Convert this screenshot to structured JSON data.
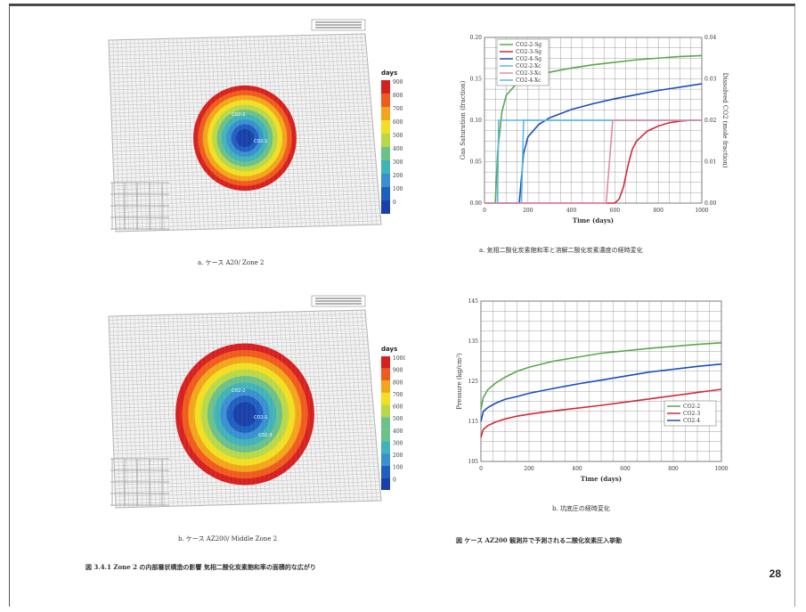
{
  "colors": {
    "ring": [
      "#d62020",
      "#f05a1e",
      "#f2a51a",
      "#f2de22",
      "#b8d84a",
      "#6cc08a",
      "#3fb3b8",
      "#3a8fd0",
      "#1f5fc0",
      "#1840a8"
    ],
    "green": "#5aa84a",
    "blue": "#1a4fb8",
    "red": "#d02b3a",
    "cyan": "#5ab8e8",
    "pink": "#e08aa8"
  },
  "map_a": {
    "legend_title": "days",
    "legend_ticks": [
      "900",
      "800",
      "700",
      "600",
      "500",
      "400",
      "300",
      "200",
      "100",
      "0"
    ],
    "labels": [
      "CO2-2",
      "CO2-1"
    ],
    "caption": "a. ケース A20/ Zone 2"
  },
  "map_b": {
    "legend_title": "days",
    "legend_ticks": [
      "1000",
      "900",
      "800",
      "700",
      "600",
      "500",
      "400",
      "300",
      "200",
      "100",
      "0"
    ],
    "labels": [
      "CO2-2",
      "CO2-1",
      "CO2-3"
    ],
    "caption": "b. ケース AZ200/ Middle Zone 2"
  },
  "left_caption": "図 3.4.1 Zone 2 の内部層状構造の影響 気相二酸化炭素飽和率の面積的な広がり",
  "chart_a_caption": "a. 気相二酸化炭素飽和率と溶解二酸化炭素濃度の経時変化",
  "chart_b_caption": "b. 坑底圧の経時変化",
  "right_caption": "図   ケース AZ200 観測井で予測される二酸化炭素圧入挙動",
  "page_number": "28",
  "chart_data": [
    {
      "type": "line",
      "xlabel": "Time (days)",
      "ylabel": "Gas Saturation (fraction)",
      "y2label": "Dissolved CO2 (mole fraction)",
      "xlim": [
        0,
        1000
      ],
      "ylim": [
        0,
        0.2
      ],
      "y2lim": [
        0,
        0.04
      ],
      "xticks": [
        "0",
        "200",
        "400",
        "600",
        "800",
        "1000"
      ],
      "yticks": [
        "0.00",
        "0.05",
        "0.10",
        "0.15",
        "0.20"
      ],
      "y2ticks": [
        "0.00",
        "0.01",
        "0.02",
        "0.03",
        "0.04"
      ],
      "legend": [
        "CO2-2-Sg",
        "CO2-3-Sg",
        "CO2-4-Sg",
        "CO2-2-Xc",
        "CO2-3-Xc",
        "CO2-4-Xc"
      ],
      "series": [
        {
          "name": "CO2-2-Sg",
          "x": [
            0,
            50,
            60,
            80,
            100,
            150,
            200,
            300,
            400,
            500,
            600,
            700,
            800,
            900,
            1000
          ],
          "values": [
            0,
            0,
            0.06,
            0.11,
            0.13,
            0.145,
            0.15,
            0.158,
            0.163,
            0.167,
            0.17,
            0.173,
            0.175,
            0.177,
            0.178
          ]
        },
        {
          "name": "CO2-4-Sg",
          "x": [
            0,
            160,
            170,
            180,
            200,
            250,
            300,
            400,
            500,
            600,
            700,
            800,
            900,
            1000
          ],
          "values": [
            0,
            0,
            0.03,
            0.06,
            0.08,
            0.095,
            0.103,
            0.113,
            0.12,
            0.126,
            0.131,
            0.136,
            0.14,
            0.144
          ]
        },
        {
          "name": "CO2-3-Sg",
          "x": [
            0,
            600,
            620,
            640,
            660,
            680,
            700,
            750,
            800,
            850,
            900,
            950,
            1000
          ],
          "values": [
            0,
            0,
            0.005,
            0.02,
            0.045,
            0.065,
            0.075,
            0.087,
            0.093,
            0.097,
            0.099,
            0.1,
            0.1
          ]
        },
        {
          "name": "CO2-2-Xc",
          "x": [
            0,
            60,
            65,
            1000
          ],
          "values": [
            0,
            0,
            0.1,
            0.1
          ]
        },
        {
          "name": "CO2-4-Xc",
          "x": [
            0,
            170,
            180,
            1000
          ],
          "values": [
            0,
            0,
            0.1,
            0.1
          ]
        },
        {
          "name": "CO2-3-Xc",
          "x": [
            0,
            560,
            575,
            590,
            1000
          ],
          "values": [
            0,
            0,
            0.05,
            0.1,
            0.1
          ]
        }
      ]
    },
    {
      "type": "line",
      "xlabel": "Time (days)",
      "ylabel": "Pressure (kg/cm²)",
      "xlim": [
        0,
        1000
      ],
      "ylim": [
        105,
        145
      ],
      "xticks": [
        "0",
        "200",
        "400",
        "600",
        "800",
        "1000"
      ],
      "yticks": [
        "105",
        "115",
        "125",
        "135",
        "145"
      ],
      "legend": [
        "CO2-2",
        "CO2-3",
        "CO2-4"
      ],
      "series": [
        {
          "name": "CO2-2",
          "x": [
            0,
            10,
            30,
            60,
            100,
            150,
            200,
            300,
            400,
            500,
            600,
            700,
            800,
            900,
            1000
          ],
          "values": [
            118,
            121,
            123,
            124.5,
            126,
            127.5,
            128.5,
            130,
            131,
            132,
            132.6,
            133.2,
            133.7,
            134.2,
            134.6
          ]
        },
        {
          "name": "CO2-3",
          "x": [
            0,
            10,
            30,
            60,
            100,
            150,
            200,
            300,
            400,
            500,
            600,
            700,
            800,
            900,
            1000
          ],
          "values": [
            111,
            113,
            114,
            114.8,
            115.6,
            116.3,
            116.8,
            117.6,
            118.3,
            119,
            119.8,
            120.6,
            121.4,
            122.2,
            123
          ]
        },
        {
          "name": "CO2-4",
          "x": [
            0,
            10,
            30,
            60,
            100,
            150,
            200,
            300,
            400,
            500,
            600,
            700,
            800,
            900,
            1000
          ],
          "values": [
            115,
            117.5,
            118.5,
            119.5,
            120.5,
            121.2,
            122,
            123.2,
            124.3,
            125.3,
            126.3,
            127.3,
            128,
            128.7,
            129.3
          ]
        }
      ]
    }
  ]
}
